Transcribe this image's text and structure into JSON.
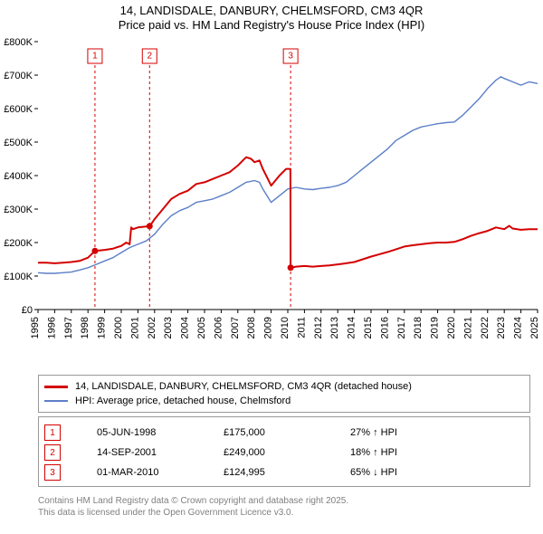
{
  "title_line1": "14, LANDISDALE, DANBURY, CHELMSFORD, CM3 4QR",
  "title_line2": "Price paid vs. HM Land Registry's House Price Index (HPI)",
  "title_fontsize": 13,
  "chart": {
    "type": "line",
    "background_color": "#ffffff",
    "grid_color": "#ffffff",
    "axis_color": "#000000",
    "x": {
      "min": 1995,
      "max": 2025,
      "tick_step": 1,
      "label_rotation": -90
    },
    "y": {
      "min": 0,
      "max": 800000,
      "tick_step": 100000,
      "tick_labels": [
        "£0",
        "£100K",
        "£200K",
        "£300K",
        "£400K",
        "£500K",
        "£600K",
        "£700K",
        "£800K"
      ]
    },
    "series": [
      {
        "name": "14, LANDISDALE, DANBURY, CHELMSFORD, CM3 4QR (detached house)",
        "color": "#d40000",
        "line_width": 2,
        "points": [
          [
            1995.0,
            140000
          ],
          [
            1995.5,
            140000
          ],
          [
            1996.0,
            138000
          ],
          [
            1996.5,
            140000
          ],
          [
            1997.0,
            142000
          ],
          [
            1997.5,
            145000
          ],
          [
            1998.0,
            155000
          ],
          [
            1998.42,
            175000
          ],
          [
            1998.43,
            175000
          ],
          [
            1999.0,
            178000
          ],
          [
            1999.5,
            182000
          ],
          [
            2000.0,
            190000
          ],
          [
            2000.3,
            200000
          ],
          [
            2000.5,
            195000
          ],
          [
            2000.6,
            245000
          ],
          [
            2000.7,
            240000
          ],
          [
            2001.0,
            245000
          ],
          [
            2001.5,
            248000
          ],
          [
            2001.7,
            249000
          ],
          [
            2001.71,
            249000
          ],
          [
            2002.0,
            270000
          ],
          [
            2002.5,
            300000
          ],
          [
            2003.0,
            330000
          ],
          [
            2003.5,
            345000
          ],
          [
            2004.0,
            355000
          ],
          [
            2004.5,
            375000
          ],
          [
            2005.0,
            380000
          ],
          [
            2005.5,
            390000
          ],
          [
            2006.0,
            400000
          ],
          [
            2006.5,
            410000
          ],
          [
            2007.0,
            430000
          ],
          [
            2007.3,
            445000
          ],
          [
            2007.5,
            455000
          ],
          [
            2007.8,
            450000
          ],
          [
            2008.0,
            440000
          ],
          [
            2008.3,
            445000
          ],
          [
            2008.5,
            420000
          ],
          [
            2009.0,
            370000
          ],
          [
            2009.5,
            400000
          ],
          [
            2009.9,
            420000
          ],
          [
            2010.0,
            420000
          ],
          [
            2010.16,
            420000
          ],
          [
            2010.17,
            124995
          ],
          [
            2010.5,
            128000
          ],
          [
            2011.0,
            130000
          ],
          [
            2011.5,
            128000
          ],
          [
            2012.0,
            130000
          ],
          [
            2012.5,
            132000
          ],
          [
            2013.0,
            135000
          ],
          [
            2013.5,
            138000
          ],
          [
            2014.0,
            142000
          ],
          [
            2014.5,
            150000
          ],
          [
            2015.0,
            158000
          ],
          [
            2015.5,
            165000
          ],
          [
            2016.0,
            172000
          ],
          [
            2016.5,
            180000
          ],
          [
            2017.0,
            188000
          ],
          [
            2017.5,
            192000
          ],
          [
            2018.0,
            195000
          ],
          [
            2018.5,
            198000
          ],
          [
            2019.0,
            200000
          ],
          [
            2019.5,
            200000
          ],
          [
            2020.0,
            202000
          ],
          [
            2020.5,
            210000
          ],
          [
            2021.0,
            220000
          ],
          [
            2021.5,
            228000
          ],
          [
            2022.0,
            235000
          ],
          [
            2022.5,
            245000
          ],
          [
            2023.0,
            240000
          ],
          [
            2023.3,
            250000
          ],
          [
            2023.5,
            242000
          ],
          [
            2024.0,
            238000
          ],
          [
            2024.5,
            240000
          ],
          [
            2025.0,
            240000
          ]
        ]
      },
      {
        "name": "HPI: Average price, detached house, Chelmsford",
        "color": "#5b7fc7",
        "line_width": 1.4,
        "points": [
          [
            1995.0,
            110000
          ],
          [
            1995.5,
            108000
          ],
          [
            1996.0,
            108000
          ],
          [
            1996.5,
            110000
          ],
          [
            1997.0,
            112000
          ],
          [
            1997.5,
            118000
          ],
          [
            1998.0,
            125000
          ],
          [
            1998.5,
            135000
          ],
          [
            1999.0,
            145000
          ],
          [
            1999.5,
            155000
          ],
          [
            2000.0,
            170000
          ],
          [
            2000.5,
            185000
          ],
          [
            2001.0,
            195000
          ],
          [
            2001.5,
            205000
          ],
          [
            2002.0,
            225000
          ],
          [
            2002.5,
            255000
          ],
          [
            2003.0,
            280000
          ],
          [
            2003.5,
            295000
          ],
          [
            2004.0,
            305000
          ],
          [
            2004.5,
            320000
          ],
          [
            2005.0,
            325000
          ],
          [
            2005.5,
            330000
          ],
          [
            2006.0,
            340000
          ],
          [
            2006.5,
            350000
          ],
          [
            2007.0,
            365000
          ],
          [
            2007.5,
            380000
          ],
          [
            2008.0,
            385000
          ],
          [
            2008.3,
            380000
          ],
          [
            2008.5,
            360000
          ],
          [
            2009.0,
            320000
          ],
          [
            2009.5,
            340000
          ],
          [
            2010.0,
            360000
          ],
          [
            2010.5,
            365000
          ],
          [
            2011.0,
            360000
          ],
          [
            2011.5,
            358000
          ],
          [
            2012.0,
            362000
          ],
          [
            2012.5,
            365000
          ],
          [
            2013.0,
            370000
          ],
          [
            2013.5,
            380000
          ],
          [
            2014.0,
            400000
          ],
          [
            2014.5,
            420000
          ],
          [
            2015.0,
            440000
          ],
          [
            2015.5,
            460000
          ],
          [
            2016.0,
            480000
          ],
          [
            2016.5,
            505000
          ],
          [
            2017.0,
            520000
          ],
          [
            2017.5,
            535000
          ],
          [
            2018.0,
            545000
          ],
          [
            2018.5,
            550000
          ],
          [
            2019.0,
            555000
          ],
          [
            2019.5,
            558000
          ],
          [
            2020.0,
            560000
          ],
          [
            2020.5,
            580000
          ],
          [
            2021.0,
            605000
          ],
          [
            2021.5,
            630000
          ],
          [
            2022.0,
            660000
          ],
          [
            2022.5,
            685000
          ],
          [
            2022.8,
            695000
          ],
          [
            2023.0,
            690000
          ],
          [
            2023.5,
            680000
          ],
          [
            2024.0,
            670000
          ],
          [
            2024.5,
            680000
          ],
          [
            2025.0,
            675000
          ]
        ]
      }
    ],
    "markers": [
      {
        "n": "1",
        "color": "#d40000",
        "x": 1998.42,
        "y_price": 175000
      },
      {
        "n": "2",
        "color": "#d40000",
        "x": 2001.7,
        "y_price": 249000
      },
      {
        "n": "3",
        "color": "#d40000",
        "x": 2010.17,
        "y_price": 124995
      }
    ]
  },
  "legend": {
    "items": [
      {
        "color": "#d40000",
        "label": "14, LANDISDALE, DANBURY, CHELMSFORD, CM3 4QR (detached house)"
      },
      {
        "color": "#5b7fc7",
        "label": "HPI: Average price, detached house, Chelmsford"
      }
    ]
  },
  "events": [
    {
      "n": "1",
      "color": "#d40000",
      "date": "05-JUN-1998",
      "price": "£175,000",
      "hpi": "27% ↑ HPI"
    },
    {
      "n": "2",
      "color": "#d40000",
      "date": "14-SEP-2001",
      "price": "£249,000",
      "hpi": "18% ↑ HPI"
    },
    {
      "n": "3",
      "color": "#d40000",
      "date": "01-MAR-2010",
      "price": "£124,995",
      "hpi": "65% ↓ HPI"
    }
  ],
  "footer_line1": "Contains HM Land Registry data © Crown copyright and database right 2025.",
  "footer_line2": "This data is licensed under the Open Government Licence v3.0."
}
